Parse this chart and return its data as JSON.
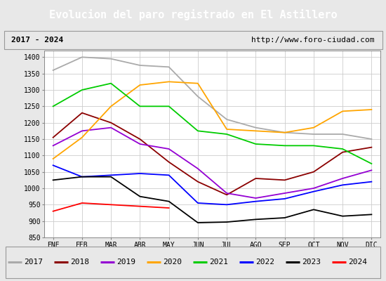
{
  "title": "Evolucion del paro registrado en El Astillero",
  "subtitle_left": "2017 - 2024",
  "subtitle_right": "http://www.foro-ciudad.com",
  "months": [
    "ENE",
    "FEB",
    "MAR",
    "ABR",
    "MAY",
    "JUN",
    "JUL",
    "AGO",
    "SEP",
    "OCT",
    "NOV",
    "DIC"
  ],
  "ylim": [
    850,
    1420
  ],
  "yticks": [
    850,
    900,
    950,
    1000,
    1050,
    1100,
    1150,
    1200,
    1250,
    1300,
    1350,
    1400
  ],
  "series": {
    "2017": {
      "color": "#aaaaaa",
      "data": [
        1360,
        1400,
        1395,
        1375,
        1370,
        1280,
        1210,
        1185,
        1170,
        1165,
        1165,
        1150
      ]
    },
    "2018": {
      "color": "#8b0000",
      "data": [
        1155,
        1230,
        1200,
        1150,
        1080,
        1020,
        980,
        1030,
        1025,
        1050,
        1110,
        1125
      ]
    },
    "2019": {
      "color": "#9400d3",
      "data": [
        1130,
        1175,
        1185,
        1135,
        1120,
        1060,
        985,
        970,
        985,
        1000,
        1030,
        1055
      ]
    },
    "2020": {
      "color": "#ffa500",
      "data": [
        1090,
        1155,
        1250,
        1315,
        1325,
        1320,
        1180,
        1175,
        1170,
        1185,
        1235,
        1240
      ]
    },
    "2021": {
      "color": "#00cc00",
      "data": [
        1250,
        1300,
        1320,
        1250,
        1250,
        1175,
        1165,
        1135,
        1130,
        1130,
        1120,
        1075
      ]
    },
    "2022": {
      "color": "#0000ff",
      "data": [
        1070,
        1035,
        1040,
        1045,
        1040,
        955,
        950,
        960,
        968,
        990,
        1010,
        1020
      ]
    },
    "2023": {
      "color": "#000000",
      "data": [
        1025,
        1035,
        1035,
        975,
        960,
        895,
        897,
        905,
        910,
        935,
        915,
        920
      ]
    },
    "2024": {
      "color": "#ff0000",
      "data": [
        930,
        955,
        950,
        945,
        940,
        null,
        null,
        null,
        null,
        null,
        null,
        null
      ]
    }
  },
  "background_color": "#e8e8e8",
  "plot_background": "#ffffff",
  "title_background": "#4472c4",
  "title_color": "#ffffff",
  "grid_color": "#cccccc",
  "title_fontsize": 11,
  "subtitle_fontsize": 8,
  "tick_fontsize": 7,
  "legend_fontsize": 8
}
